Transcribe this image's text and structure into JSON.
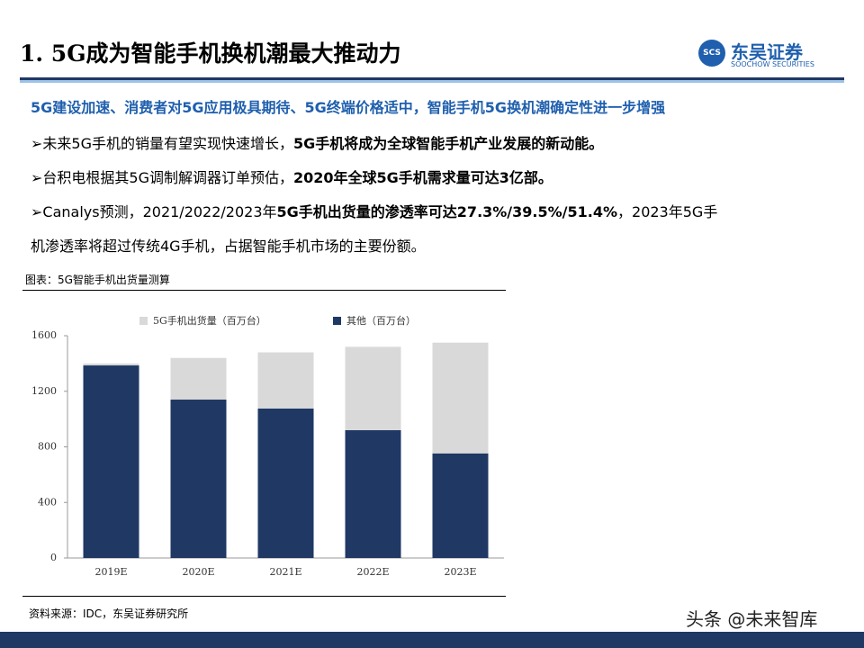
{
  "header": {
    "title": "1. 5G成为智能手机换机潮最大推动力",
    "logo_mark": "SCS",
    "logo_name": "东吴证券",
    "logo_en": "SOOCHOW SECURITIES"
  },
  "headline": "5G建设加速、消费者对5G应用极具期待、5G终端价格适中，智能手机5G换机潮确定性进一步增强",
  "bullets": [
    [
      "➢未来5G手机的销量有望实现快速增长，",
      "5G手机将成为全球智能手机产业发展的新动能。"
    ],
    [
      "➢台积电根据其5G调制解调器订单预估，",
      "2020年全球5G手机需求量可达3亿部。"
    ],
    [
      "➢Canalys预测，2021/2022/2023年",
      "5G手机出货量的渗透率可达27.3%/39.5%/51.4%",
      "，2023年5G手",
      "机渗透率将超过传统4G手机，占据智能手机市场的主要份额。"
    ]
  ],
  "chart_caption": "图表：5G智能手机出货量测算",
  "source": "资料来源：IDC，东吴证券研究所",
  "watermark": "头条 @未来智库",
  "chart_data": {
    "type": "stacked_bar",
    "categories": [
      "2019E",
      "2020E",
      "2021E",
      "2022E",
      "2023E"
    ],
    "series": [
      {
        "name": "5G手机出货量（百万台）",
        "color": "#d9d9d9",
        "values": [
          14,
          300,
          404,
          600,
          797
        ]
      },
      {
        "name": "其他（百万台）",
        "color": "#1f3864",
        "values": [
          1386,
          1140,
          1076,
          920,
          753
        ]
      }
    ],
    "ylim": [
      0,
      1600
    ],
    "yticks": [
      0,
      400,
      800,
      1200,
      1600
    ],
    "legend": "top"
  }
}
